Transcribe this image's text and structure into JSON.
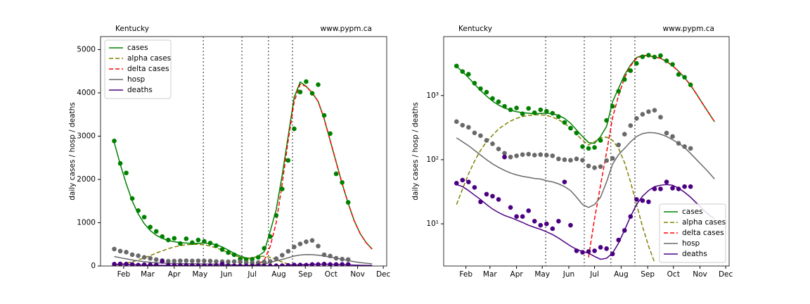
{
  "chart_data": [
    {
      "type": "line",
      "title": "Kentucky",
      "source": "www.pypm.ca",
      "ylabel": "daily cases / hosp / deaths",
      "log_scale": false,
      "legend": "upper left",
      "xlim": [
        5,
        339
      ],
      "ylim": [
        0,
        5300
      ],
      "xticks": [
        {
          "value": 32,
          "label": "Feb"
        },
        {
          "value": 60,
          "label": "Mar"
        },
        {
          "value": 91,
          "label": "Apr"
        },
        {
          "value": 121,
          "label": "May"
        },
        {
          "value": 152,
          "label": "Jun"
        },
        {
          "value": 182,
          "label": "Jul"
        },
        {
          "value": 213,
          "label": "Aug"
        },
        {
          "value": 244,
          "label": "Sep"
        },
        {
          "value": 274,
          "label": "Oct"
        },
        {
          "value": 305,
          "label": "Nov"
        },
        {
          "value": 335,
          "label": "Dec"
        }
      ],
      "yticks": [
        0,
        1000,
        2000,
        3000,
        4000,
        5000
      ],
      "vlines": [
        125,
        170,
        201,
        229
      ],
      "x": [
        21,
        28,
        35,
        42,
        49,
        56,
        63,
        70,
        77,
        84,
        91,
        98,
        105,
        112,
        119,
        126,
        133,
        140,
        147,
        154,
        161,
        168,
        175,
        182,
        189,
        196,
        203,
        210,
        217,
        224,
        231,
        238,
        245,
        252,
        259,
        266,
        273,
        280,
        287,
        294,
        301,
        308,
        315,
        322
      ],
      "series": [
        {
          "name": "cases",
          "color": "#008000",
          "dashed": false,
          "values": [
            2850,
            2350,
            1900,
            1500,
            1200,
            980,
            820,
            710,
            640,
            590,
            560,
            540,
            530,
            520,
            525,
            530,
            520,
            490,
            440,
            370,
            290,
            230,
            185,
            180,
            230,
            330,
            800,
            1300,
            2100,
            3000,
            3900,
            4250,
            4150,
            4000,
            3800,
            3400,
            2900,
            2400,
            1900,
            1450,
            1050,
            750,
            540,
            390
          ]
        },
        {
          "name": "alpha cases",
          "color": "#808000",
          "dashed": true,
          "values": [
            20,
            35,
            60,
            95,
            140,
            190,
            240,
            300,
            350,
            400,
            440,
            470,
            490,
            500,
            500,
            490,
            460,
            420,
            370,
            310,
            250,
            200,
            170,
            190,
            220,
            225,
            200,
            150,
            90,
            45,
            20,
            9,
            4.5,
            2.5,
            null,
            null,
            null,
            null,
            null,
            null,
            null,
            null,
            null,
            null
          ]
        },
        {
          "name": "delta cases",
          "color": "#ff0000",
          "dashed": true,
          "values": [
            null,
            null,
            null,
            null,
            null,
            null,
            null,
            null,
            null,
            null,
            null,
            null,
            null,
            null,
            null,
            null,
            null,
            null,
            null,
            null,
            null,
            null,
            3,
            12,
            40,
            130,
            450,
            1000,
            1900,
            2900,
            3800,
            4200,
            4150,
            4000,
            3800,
            3400,
            2900,
            2400,
            1900,
            1450,
            1050,
            750,
            540,
            390
          ]
        },
        {
          "name": "hosp",
          "color": "#696969",
          "dashed": false,
          "values": [
            219,
            190,
            165,
            140,
            118,
            100,
            86,
            76,
            68,
            62,
            58,
            55,
            53,
            51,
            50,
            47,
            45,
            42,
            38,
            33,
            26,
            20,
            18,
            20,
            26,
            45,
            85,
            120,
            150,
            190,
            230,
            255,
            265,
            262,
            250,
            230,
            205,
            180,
            155,
            125,
            100,
            80,
            64,
            50
          ]
        },
        {
          "name": "deaths",
          "color": "#4b0082",
          "dashed": false,
          "values": [
            41,
            38,
            33,
            28,
            24,
            20,
            17,
            15,
            13.5,
            12.5,
            11.5,
            10.5,
            9.5,
            8.8,
            8.2,
            7.5,
            6.8,
            6,
            5.2,
            4.5,
            4,
            3.7,
            3.5,
            3.1,
            2.8,
            2.9,
            3.5,
            5,
            8,
            13,
            20,
            27,
            33,
            38,
            40,
            41,
            40,
            36,
            31,
            26,
            21,
            17,
            14,
            12
          ]
        }
      ],
      "points_x": [
        21,
        28,
        35,
        42,
        49,
        56,
        63,
        70,
        77,
        84,
        91,
        98,
        105,
        112,
        119,
        126,
        133,
        140,
        147,
        154,
        161,
        168,
        175,
        182,
        189,
        196,
        203,
        210,
        217,
        224,
        231,
        238,
        245,
        252,
        259,
        266,
        273,
        280,
        287,
        294
      ],
      "points": [
        {
          "color": "#008000",
          "values": [
            2890,
            2370,
            2150,
            1560,
            1280,
            1130,
            900,
            800,
            680,
            600,
            640,
            520,
            630,
            540,
            600,
            570,
            530,
            470,
            380,
            310,
            260,
            160,
            150,
            155,
            200,
            410,
            680,
            1170,
            1780,
            2440,
            3170,
            4020,
            4260,
            3990,
            4190,
            3480,
            3060,
            2130,
            1930,
            1470
          ]
        },
        {
          "color": "#696969",
          "values": [
            392,
            345,
            320,
            262,
            237,
            200,
            177,
            147,
            126,
            110,
            115,
            120,
            122,
            118,
            120,
            118,
            115,
            103,
            100,
            98,
            103,
            98,
            80,
            75,
            78,
            97,
            105,
            170,
            250,
            340,
            440,
            510,
            560,
            590,
            460,
            260,
            230,
            180,
            160,
            150
          ]
        },
        {
          "color": "#4b0082",
          "values": [
            43,
            48,
            45,
            37,
            22,
            29,
            27,
            24,
            110,
            18,
            13,
            13,
            16,
            11,
            9.5,
            10,
            8.4,
            11,
            45,
            9.5,
            3.8,
            3.6,
            3.7,
            3.8,
            4.3,
            4.1,
            3.4,
            5.6,
            7.9,
            13,
            24,
            23,
            22,
            35,
            35,
            45,
            36,
            35,
            38,
            38
          ]
        }
      ]
    },
    {
      "type": "line",
      "title": "Kentucky",
      "source": "www.pypm.ca",
      "ylabel": "daily cases / hosp / deaths",
      "log_scale": true,
      "legend": "lower right",
      "xlim": [
        6,
        339
      ],
      "ylim": [
        2.2,
        8300
      ],
      "xticks": [
        {
          "value": 32,
          "label": "Feb"
        },
        {
          "value": 60,
          "label": "Mar"
        },
        {
          "value": 91,
          "label": "Apr"
        },
        {
          "value": 121,
          "label": "May"
        },
        {
          "value": 152,
          "label": "Jun"
        },
        {
          "value": 182,
          "label": "Jul"
        },
        {
          "value": 213,
          "label": "Aug"
        },
        {
          "value": 244,
          "label": "Sep"
        },
        {
          "value": 274,
          "label": "Oct"
        },
        {
          "value": 305,
          "label": "Nov"
        },
        {
          "value": 335,
          "label": "Dec"
        }
      ],
      "yticks": [
        {
          "value": 10,
          "label": "10¹"
        },
        {
          "value": 100,
          "label": "10²"
        },
        {
          "value": 1000,
          "label": "10³"
        }
      ],
      "vlines": [
        125,
        170,
        201,
        229
      ],
      "x": [
        21,
        28,
        35,
        42,
        49,
        56,
        63,
        70,
        77,
        84,
        91,
        98,
        105,
        112,
        119,
        126,
        133,
        140,
        147,
        154,
        161,
        168,
        175,
        182,
        189,
        196,
        203,
        210,
        217,
        224,
        231,
        238,
        245,
        252,
        259,
        266,
        273,
        280,
        287,
        294,
        301,
        308,
        315,
        322
      ],
      "series": [
        {
          "name": "cases",
          "color": "#008000",
          "dashed": false,
          "values": [
            2850,
            2350,
            1900,
            1500,
            1200,
            980,
            820,
            710,
            640,
            590,
            560,
            540,
            530,
            520,
            525,
            530,
            520,
            490,
            440,
            370,
            290,
            230,
            185,
            180,
            230,
            330,
            800,
            1300,
            2100,
            3000,
            3900,
            4250,
            4150,
            4000,
            3800,
            3400,
            2900,
            2400,
            1900,
            1450,
            1050,
            750,
            540,
            390
          ]
        },
        {
          "name": "alpha cases",
          "color": "#808000",
          "dashed": true,
          "values": [
            20,
            35,
            60,
            95,
            140,
            190,
            240,
            300,
            350,
            400,
            440,
            470,
            490,
            500,
            500,
            490,
            460,
            420,
            370,
            310,
            250,
            200,
            170,
            190,
            220,
            225,
            200,
            150,
            90,
            45,
            20,
            9,
            4.5,
            2.5,
            null,
            null,
            null,
            null,
            null,
            null,
            null,
            null,
            null,
            null
          ]
        },
        {
          "name": "delta cases",
          "color": "#ff0000",
          "dashed": true,
          "values": [
            null,
            null,
            null,
            null,
            null,
            null,
            null,
            null,
            null,
            null,
            null,
            null,
            null,
            null,
            null,
            null,
            null,
            null,
            null,
            null,
            null,
            null,
            3,
            12,
            40,
            130,
            450,
            1000,
            1900,
            2900,
            3800,
            4200,
            4150,
            4000,
            3800,
            3400,
            2900,
            2400,
            1900,
            1450,
            1050,
            750,
            540,
            390
          ]
        },
        {
          "name": "hosp",
          "color": "#696969",
          "dashed": false,
          "values": [
            219,
            190,
            165,
            140,
            118,
            100,
            86,
            76,
            68,
            62,
            58,
            55,
            53,
            51,
            50,
            47,
            45,
            42,
            38,
            33,
            26,
            20,
            18,
            20,
            26,
            45,
            85,
            120,
            150,
            190,
            230,
            255,
            265,
            262,
            250,
            230,
            205,
            180,
            155,
            125,
            100,
            80,
            64,
            50
          ]
        },
        {
          "name": "deaths",
          "color": "#4b0082",
          "dashed": false,
          "values": [
            41,
            38,
            33,
            28,
            24,
            20,
            17,
            15,
            13.5,
            12.5,
            11.5,
            10.5,
            9.5,
            8.8,
            8.2,
            7.5,
            6.8,
            6,
            5.2,
            4.5,
            4,
            3.7,
            3.5,
            3.1,
            2.8,
            2.9,
            3.5,
            5,
            8,
            13,
            20,
            27,
            33,
            38,
            40,
            41,
            40,
            36,
            31,
            26,
            21,
            17,
            14,
            12
          ]
        }
      ],
      "points_x": [
        21,
        28,
        35,
        42,
        49,
        56,
        63,
        70,
        77,
        84,
        91,
        98,
        105,
        112,
        119,
        126,
        133,
        140,
        147,
        154,
        161,
        168,
        175,
        182,
        189,
        196,
        203,
        210,
        217,
        224,
        231,
        238,
        245,
        252,
        259,
        266,
        273,
        280,
        287,
        294
      ],
      "points": [
        {
          "color": "#008000",
          "values": [
            2890,
            2370,
            2150,
            1560,
            1280,
            1130,
            900,
            800,
            680,
            600,
            640,
            520,
            630,
            540,
            600,
            570,
            530,
            470,
            380,
            310,
            260,
            160,
            150,
            155,
            200,
            410,
            680,
            1170,
            1780,
            2440,
            3170,
            4020,
            4260,
            3990,
            4190,
            3480,
            3060,
            2130,
            1930,
            1470
          ]
        },
        {
          "color": "#696969",
          "values": [
            392,
            345,
            320,
            262,
            237,
            200,
            177,
            147,
            126,
            110,
            115,
            120,
            122,
            118,
            120,
            118,
            115,
            103,
            100,
            98,
            103,
            98,
            80,
            75,
            78,
            97,
            105,
            170,
            250,
            340,
            440,
            510,
            560,
            590,
            460,
            260,
            230,
            180,
            160,
            150
          ]
        },
        {
          "color": "#4b0082",
          "values": [
            43,
            48,
            45,
            37,
            22,
            29,
            27,
            24,
            110,
            18,
            13,
            13,
            16,
            11,
            9.5,
            10,
            8.4,
            11,
            45,
            9.5,
            3.8,
            3.6,
            3.7,
            3.8,
            4.3,
            4.1,
            3.4,
            5.6,
            7.9,
            13,
            24,
            23,
            22,
            35,
            35,
            45,
            36,
            35,
            38,
            38
          ]
        }
      ]
    }
  ]
}
